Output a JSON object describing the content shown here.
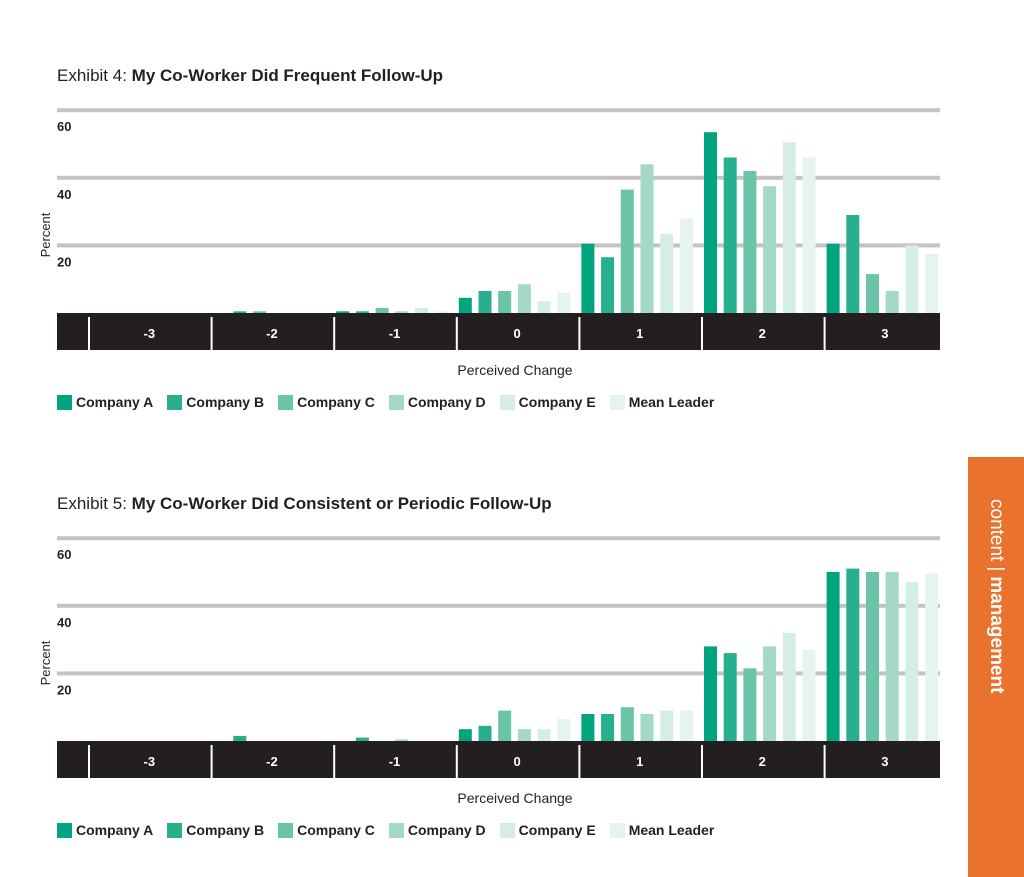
{
  "legend": [
    {
      "name": "Company A",
      "color": "#00a47e"
    },
    {
      "name": "Company B",
      "color": "#28b08e"
    },
    {
      "name": "Company C",
      "color": "#6cc4a8"
    },
    {
      "name": "Company D",
      "color": "#a3d9c6"
    },
    {
      "name": "Company E",
      "color": "#d4eee5"
    },
    {
      "name": "Mean Leader",
      "color": "#e6f4ee"
    }
  ],
  "side_tab": {
    "left": "content",
    "separator": "|",
    "right": "management",
    "color": "#e8722e"
  },
  "exhibits": [
    {
      "prefix": "Exhibit 4:",
      "title": "My Co-Worker Did Frequent Follow-Up",
      "xlabel": "Perceived Change",
      "ylabel": "Percent"
    },
    {
      "prefix": "Exhibit 5:",
      "title": "My Co-Worker Did Consistent or Periodic Follow-Up",
      "xlabel": "Perceived Change",
      "ylabel": "Percent"
    }
  ],
  "chart_data": [
    {
      "type": "bar",
      "title": "My Co-Worker Did Frequent Follow-Up",
      "xlabel": "Perceived Change",
      "ylabel": "Percent",
      "categories": [
        "-3",
        "-2",
        "-1",
        "0",
        "1",
        "2",
        "3"
      ],
      "yticks": [
        20,
        40,
        60
      ],
      "ylim": [
        0,
        60
      ],
      "grid": true,
      "legend_position": "bottom",
      "series": [
        {
          "name": "Company A",
          "values": [
            0,
            0,
            0.5,
            4.5,
            20.5,
            53.5,
            20.5
          ]
        },
        {
          "name": "Company B",
          "values": [
            0,
            0.5,
            0.5,
            6.5,
            16.5,
            46,
            29
          ]
        },
        {
          "name": "Company C",
          "values": [
            0,
            0.5,
            1.5,
            6.5,
            36.5,
            42,
            11.5
          ]
        },
        {
          "name": "Company D",
          "values": [
            0,
            0,
            0.5,
            8.5,
            44,
            37.5,
            6.5
          ]
        },
        {
          "name": "Company E",
          "values": [
            0,
            0,
            1.5,
            3.5,
            23.5,
            50.5,
            20
          ]
        },
        {
          "name": "Mean Leader",
          "values": [
            0,
            0,
            0.5,
            6,
            28,
            46,
            17.5
          ]
        }
      ]
    },
    {
      "type": "bar",
      "title": "My Co-Worker Did Consistent or Periodic Follow-Up",
      "xlabel": "Perceived Change",
      "ylabel": "Percent",
      "categories": [
        "-3",
        "-2",
        "-1",
        "0",
        "1",
        "2",
        "3"
      ],
      "yticks": [
        20,
        40,
        60
      ],
      "ylim": [
        0,
        60
      ],
      "grid": true,
      "legend_position": "bottom",
      "series": [
        {
          "name": "Company A",
          "values": [
            0,
            0,
            0,
            3.5,
            8,
            28,
            50
          ]
        },
        {
          "name": "Company B",
          "values": [
            0,
            1.5,
            1,
            4.5,
            8,
            26,
            51
          ]
        },
        {
          "name": "Company C",
          "values": [
            0,
            0,
            0,
            9,
            10,
            21.5,
            50
          ]
        },
        {
          "name": "Company D",
          "values": [
            0,
            0,
            0.5,
            3.5,
            8,
            28,
            50
          ]
        },
        {
          "name": "Company E",
          "values": [
            0,
            0,
            0,
            3.5,
            9,
            32,
            47
          ]
        },
        {
          "name": "Mean Leader",
          "values": [
            0,
            0,
            0,
            6.5,
            9,
            27,
            49.5
          ]
        }
      ]
    }
  ]
}
